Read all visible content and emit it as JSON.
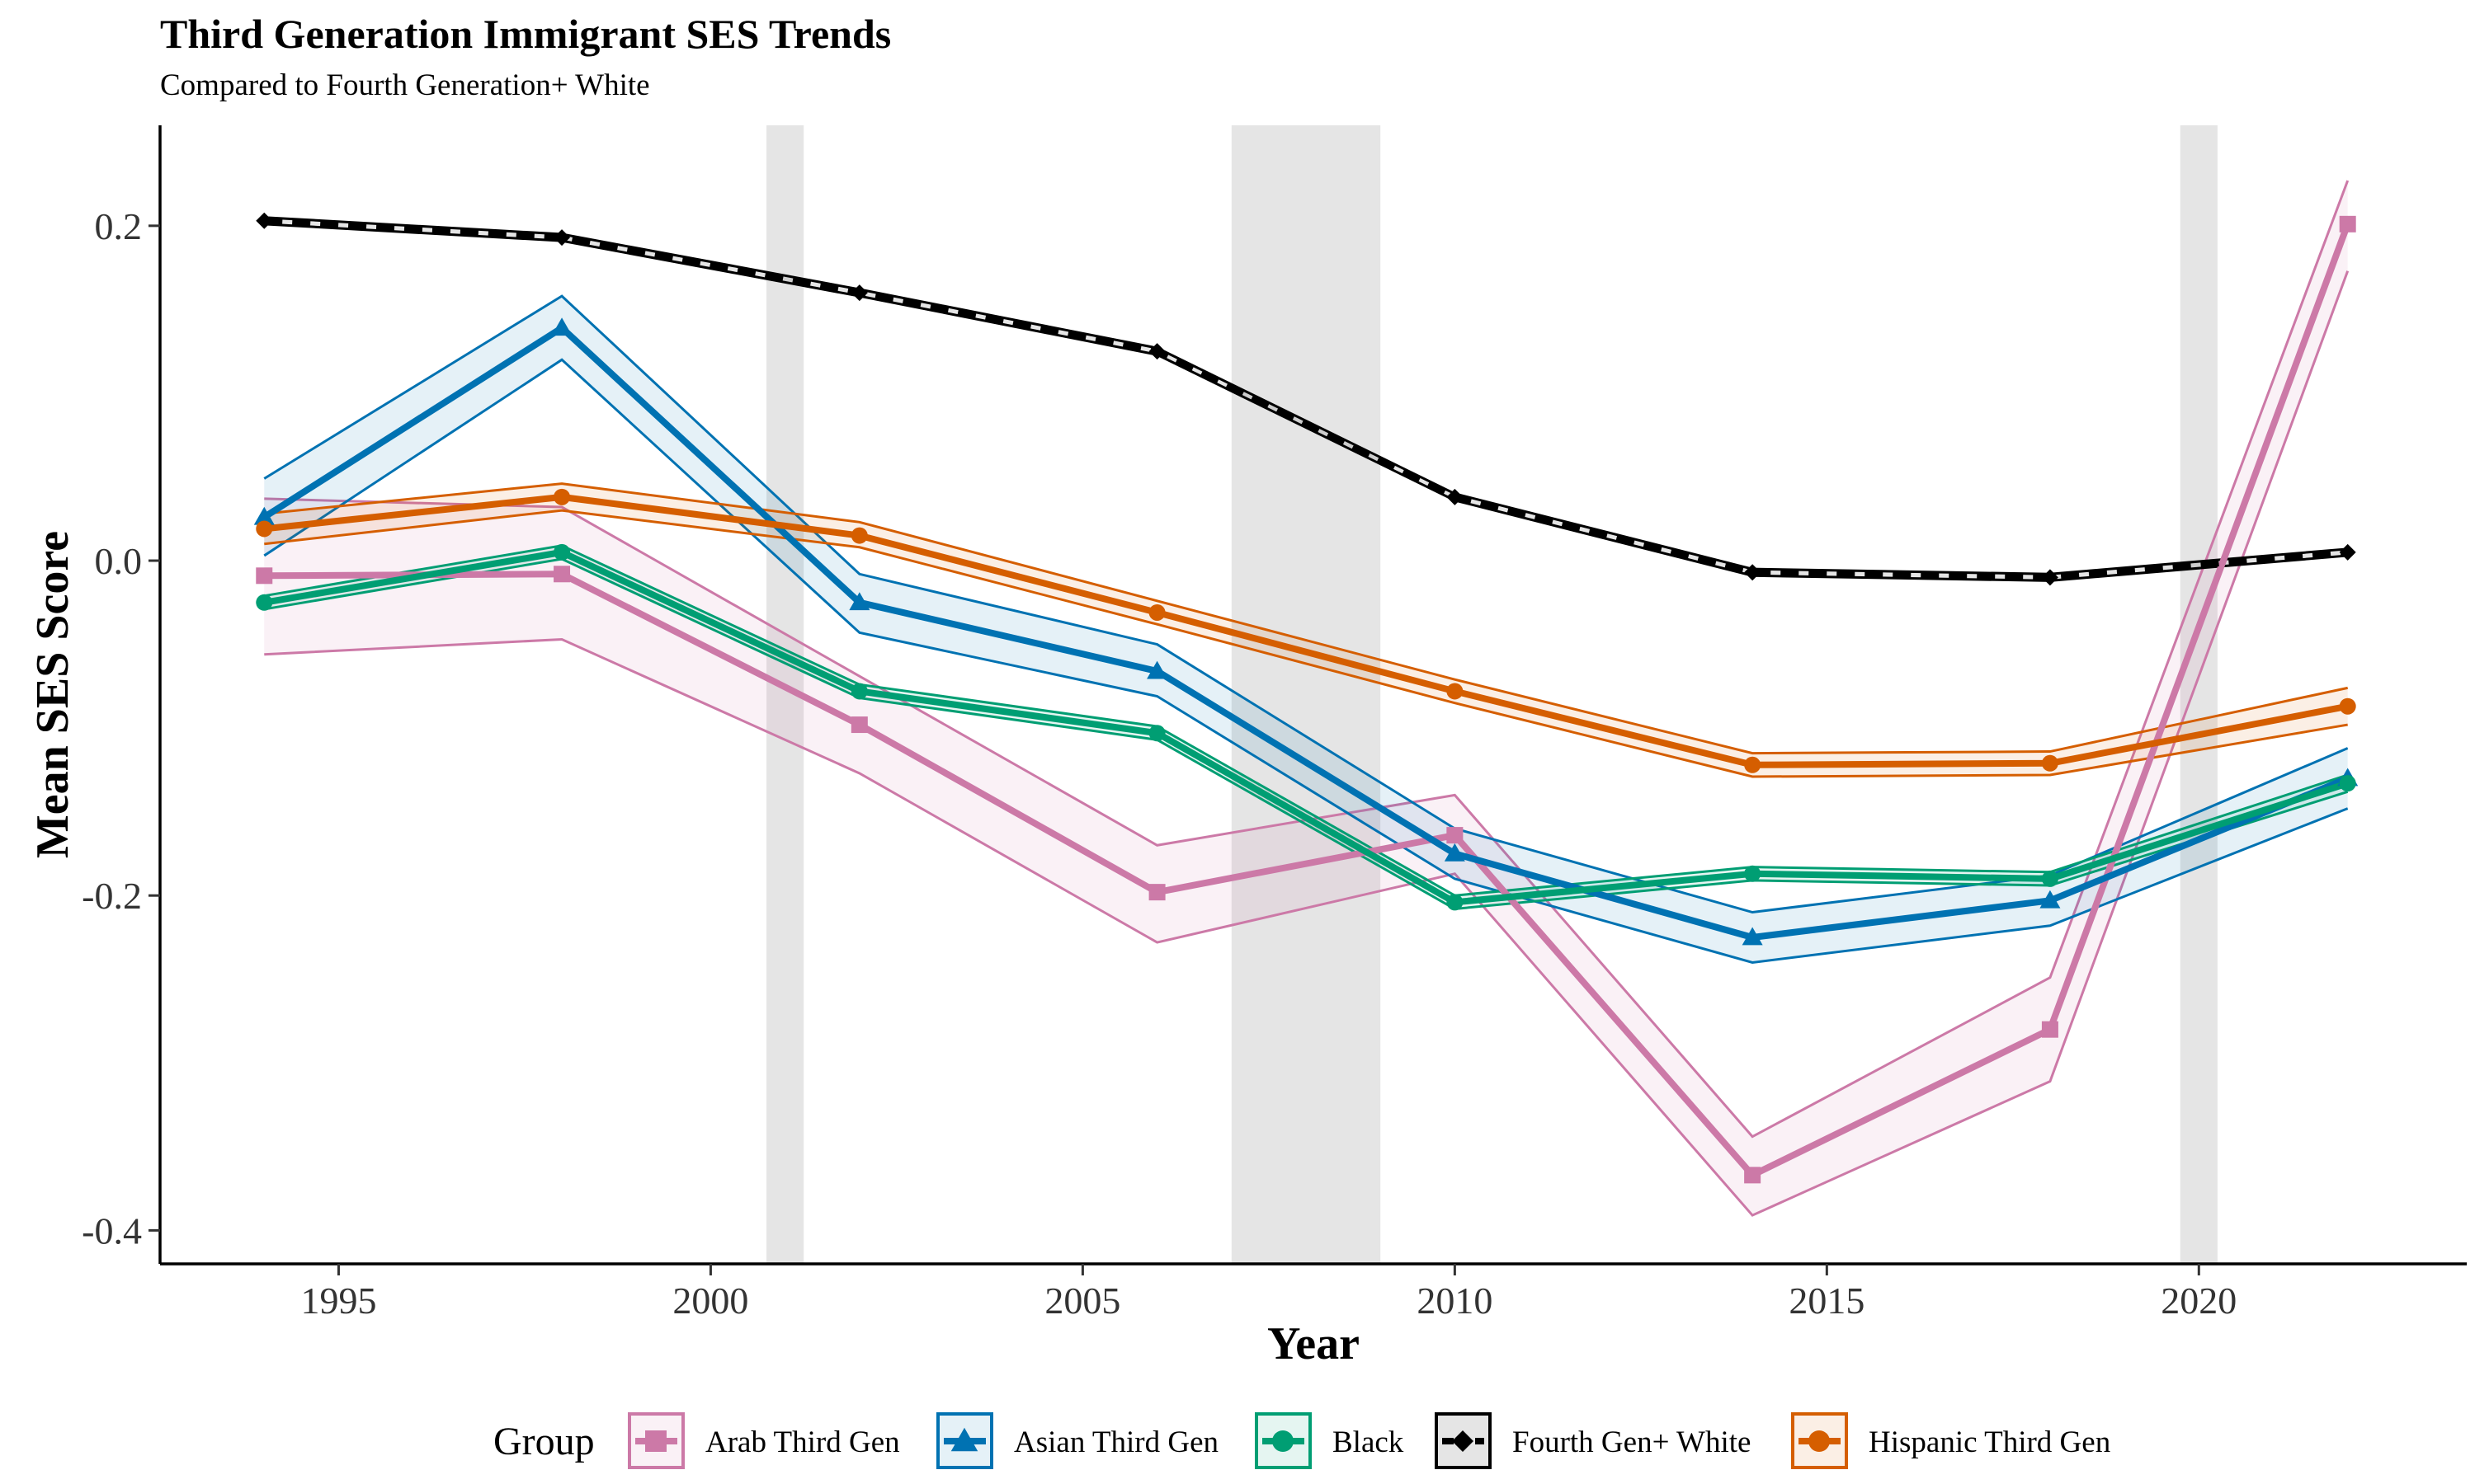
{
  "chart_data": {
    "type": "line",
    "title": "Third Generation Immigrant SES Trends",
    "subtitle": "Compared to Fourth Generation+ White",
    "xlabel": "Year",
    "ylabel": "Mean SES Score",
    "xlim": [
      1992.6,
      2023.6
    ],
    "ylim": [
      -0.42,
      0.26
    ],
    "x_ticks": [
      1995,
      2000,
      2005,
      2010,
      2015,
      2020
    ],
    "y_ticks": [
      -0.4,
      -0.2,
      0.0,
      0.2
    ],
    "y_tick_labels": [
      "-0.4",
      "-0.2",
      "0.0",
      "0.2"
    ],
    "x": [
      1994,
      1998,
      2002,
      2006,
      2010,
      2014,
      2018,
      2022
    ],
    "shaded_periods": [
      [
        2000.75,
        2001.25
      ],
      [
        2007.0,
        2009.0
      ],
      [
        2019.75,
        2020.25
      ]
    ],
    "legend_title": "Group",
    "legend_position": "bottom",
    "grid": false,
    "series": [
      {
        "name": "Arab Third Gen",
        "color": "#CC79A7",
        "marker": "square",
        "linestyle": "solid",
        "values": [
          -0.009,
          -0.008,
          -0.098,
          -0.198,
          -0.164,
          -0.367,
          -0.28,
          0.201
        ],
        "lower": [
          -0.056,
          -0.047,
          -0.127,
          -0.228,
          -0.187,
          -0.391,
          -0.311,
          0.173
        ],
        "upper": [
          0.037,
          0.032,
          -0.069,
          -0.17,
          -0.14,
          -0.344,
          -0.249,
          0.227
        ]
      },
      {
        "name": "Asian Third Gen",
        "color": "#0072B2",
        "marker": "triangle",
        "linestyle": "solid",
        "values": [
          0.026,
          0.139,
          -0.025,
          -0.066,
          -0.175,
          -0.225,
          -0.203,
          -0.13
        ],
        "lower": [
          0.003,
          0.12,
          -0.043,
          -0.081,
          -0.19,
          -0.24,
          -0.218,
          -0.148
        ],
        "upper": [
          0.049,
          0.158,
          -0.008,
          -0.05,
          -0.16,
          -0.21,
          -0.188,
          -0.112
        ]
      },
      {
        "name": "Black",
        "color": "#009E73",
        "marker": "circle",
        "linestyle": "solid",
        "values": [
          -0.025,
          0.005,
          -0.078,
          -0.103,
          -0.204,
          -0.187,
          -0.19,
          -0.133
        ],
        "lower": [
          -0.029,
          0.001,
          -0.082,
          -0.107,
          -0.208,
          -0.191,
          -0.194,
          -0.138
        ],
        "upper": [
          -0.021,
          0.009,
          -0.074,
          -0.099,
          -0.2,
          -0.183,
          -0.186,
          -0.128
        ]
      },
      {
        "name": "Fourth Gen+ White",
        "color": "#000000",
        "marker": "diamond",
        "linestyle": "dashed",
        "values": [
          0.203,
          0.193,
          0.16,
          0.125,
          0.038,
          -0.007,
          -0.01,
          0.005
        ],
        "lower": [
          0.201,
          0.191,
          0.158,
          0.123,
          0.036,
          -0.009,
          -0.012,
          0.003
        ],
        "upper": [
          0.205,
          0.195,
          0.162,
          0.127,
          0.04,
          -0.005,
          -0.008,
          0.007
        ]
      },
      {
        "name": "Hispanic Third Gen",
        "color": "#D55E00",
        "marker": "circle",
        "linestyle": "solid",
        "values": [
          0.019,
          0.038,
          0.015,
          -0.031,
          -0.078,
          -0.122,
          -0.121,
          -0.087
        ],
        "lower": [
          0.01,
          0.03,
          0.008,
          -0.038,
          -0.085,
          -0.129,
          -0.128,
          -0.098
        ],
        "upper": [
          0.028,
          0.046,
          0.023,
          -0.024,
          -0.071,
          -0.115,
          -0.114,
          -0.076
        ]
      }
    ]
  }
}
